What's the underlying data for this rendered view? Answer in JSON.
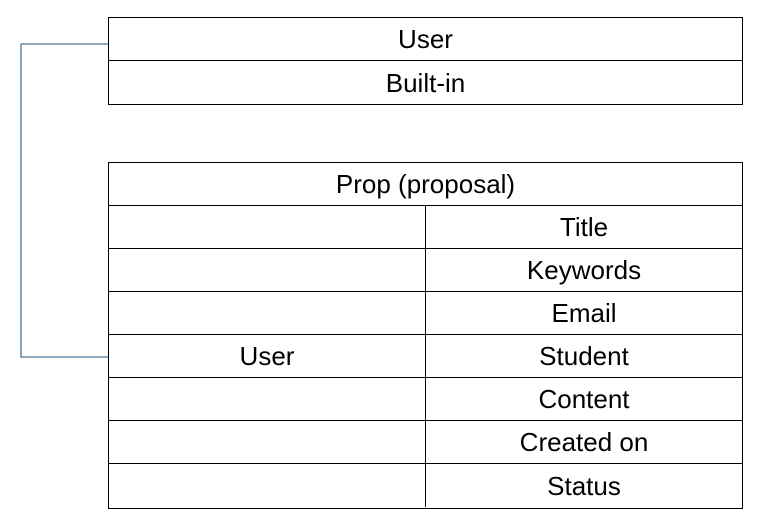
{
  "user_table": {
    "header": "User",
    "row": "Built-in"
  },
  "prop_table": {
    "header": "Prop (proposal)",
    "fields": [
      {
        "left": "",
        "right": "Title"
      },
      {
        "left": "",
        "right": "Keywords"
      },
      {
        "left": "",
        "right": "Email"
      },
      {
        "left": "User",
        "right": "Student"
      },
      {
        "left": "",
        "right": "Content"
      },
      {
        "left": "",
        "right": "Created on"
      },
      {
        "left": "",
        "right": "Status"
      }
    ]
  },
  "connector_color": "#4a7696"
}
